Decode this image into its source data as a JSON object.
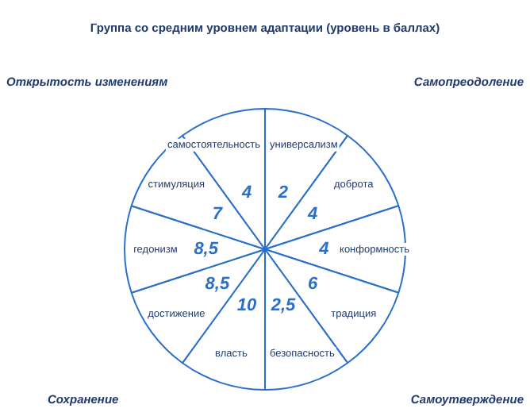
{
  "chart_data": {
    "type": "other",
    "title": "Группа со средним уровнем адаптации (уровень в баллах)",
    "categories": [
      "универсализм",
      "доброта",
      "конформность",
      "традиция",
      "безопасность",
      "власть",
      "достижение",
      "гедонизм",
      "стимуляция",
      "самостоятельность"
    ],
    "values": [
      2,
      4,
      4,
      6,
      2.5,
      10,
      8.5,
      8.5,
      7,
      4
    ],
    "value_labels": [
      "2",
      "4",
      "4",
      "6",
      "2,5",
      "10",
      "8,5",
      "8,5",
      "7",
      "4"
    ],
    "color": "#2a6fc9",
    "annotations": [
      "Открытость изменениям",
      "Самопреодоление",
      "Сохранение",
      "Самоутверждение"
    ]
  }
}
